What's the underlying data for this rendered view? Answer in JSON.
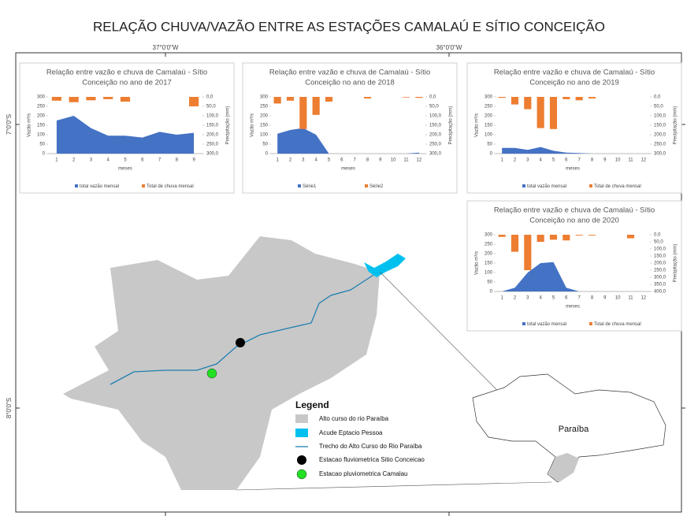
{
  "title": "RELAÇÃO CHUVA/VAZÃO ENTRE AS ESTAÇÕES CAMALAÚ E SÍTIO CONCEIÇÃO",
  "coordinates": {
    "top": [
      "37°0'0\"W",
      "36°0'0\"W"
    ],
    "left": [
      "7°0'0\"S",
      "8°0'0\"S"
    ]
  },
  "legend": {
    "title": "Legend",
    "items": [
      "Alto curso do rio Paraíba",
      "Acude Eptacio Pessoa",
      "Trecho do Alto Curso do Rio Paraíba",
      "Estacao fluviometrica Sitio Conceicao",
      "Estacao pluviometrica Camalau"
    ]
  },
  "map_label": "Paraíba",
  "chart_data": [
    {
      "type": "combo",
      "title": [
        "Relação entre vazão e chuva de Camalaú - Sítio",
        "Conceição no ano de 2017"
      ],
      "xlabel": "meses",
      "ylabel": "Vazão m³/s",
      "y2label": "Precipitação (mm)",
      "categories": [
        "1",
        "2",
        "3",
        "4",
        "5",
        "6",
        "7",
        "8",
        "9"
      ],
      "ylim": [
        0,
        300
      ],
      "yticks": [
        0,
        50,
        100,
        150,
        200,
        250,
        300
      ],
      "y2lim": [
        0,
        300
      ],
      "y2_inverted": true,
      "y2ticks": [
        {
          "value": 0,
          "label": "0,0"
        },
        {
          "value": 50,
          "label": "50,0"
        },
        {
          "value": 100,
          "label": "100,0"
        },
        {
          "value": 150,
          "label": "150,0"
        },
        {
          "value": 200,
          "label": "200,0"
        },
        {
          "value": 250,
          "label": "250,0"
        },
        {
          "value": 300,
          "label": "300,0"
        }
      ],
      "series": [
        {
          "name": "total vazão mensal",
          "kind": "area",
          "color": "#4472c4",
          "values": [
            175,
            200,
            135,
            95,
            95,
            85,
            115,
            100,
            110
          ]
        },
        {
          "name": "Total de chuva mensal",
          "kind": "bar",
          "axis": "y2",
          "color": "#ed7d31",
          "values": [
            20,
            28,
            18,
            12,
            25,
            0,
            0,
            0,
            50
          ]
        }
      ]
    },
    {
      "type": "combo",
      "title": [
        "Relação entre vazão e chuva de Camalaú - Sítio",
        "Conceição no ano de 2018"
      ],
      "xlabel": "meses",
      "ylabel": "Vazão m³/s",
      "y2label": "Precipitação (mm)",
      "categories": [
        "1",
        "2",
        "3",
        "4",
        "5",
        "6",
        "7",
        "8",
        "9",
        "10",
        "11",
        "12"
      ],
      "ylim": [
        0,
        300
      ],
      "yticks": [
        0,
        50,
        100,
        150,
        200,
        250,
        300
      ],
      "y2lim": [
        0,
        300
      ],
      "y2_inverted": true,
      "y2ticks": [
        {
          "value": 0,
          "label": "0,0"
        },
        {
          "value": 50,
          "label": "50,0"
        },
        {
          "value": 100,
          "label": "100,0"
        },
        {
          "value": 150,
          "label": "150,0"
        },
        {
          "value": 200,
          "label": "200,0"
        },
        {
          "value": 250,
          "label": "250,0"
        },
        {
          "value": 300,
          "label": "300,0"
        }
      ],
      "series": [
        {
          "name": "Série1",
          "kind": "area",
          "color": "#4472c4",
          "values": [
            105,
            125,
            135,
            100,
            0,
            0,
            0,
            0,
            0,
            0,
            0,
            5
          ]
        },
        {
          "name": "Série2",
          "kind": "bar",
          "axis": "y2",
          "color": "#ed7d31",
          "values": [
            35,
            20,
            170,
            95,
            25,
            0,
            0,
            8,
            0,
            0,
            3,
            5
          ]
        }
      ]
    },
    {
      "type": "combo",
      "title": [
        "Relação entre vazão e chuva de Camalaú - Sítio",
        "Conceição no ano de 2019"
      ],
      "xlabel": "meses",
      "ylabel": "Vazão m³/s",
      "y2label": "Precipitação (mm)",
      "categories": [
        "1",
        "2",
        "3",
        "4",
        "5",
        "6",
        "7",
        "8",
        "9",
        "10",
        "11",
        "12"
      ],
      "ylim": [
        0,
        300
      ],
      "yticks": [
        0,
        50,
        100,
        150,
        200,
        250,
        300
      ],
      "y2lim": [
        0,
        300
      ],
      "y2_inverted": true,
      "y2ticks": [
        {
          "value": 0,
          "label": "0,0"
        },
        {
          "value": 50,
          "label": "50,0"
        },
        {
          "value": 100,
          "label": "100,0"
        },
        {
          "value": 150,
          "label": "150,0"
        },
        {
          "value": 200,
          "label": "200,0"
        },
        {
          "value": 250,
          "label": "250,0"
        },
        {
          "value": 300,
          "label": "300,0"
        }
      ],
      "series": [
        {
          "name": "total vazão mensal",
          "kind": "area",
          "color": "#4472c4",
          "values": [
            30,
            30,
            20,
            35,
            15,
            5,
            3,
            0,
            0,
            0,
            0,
            0
          ]
        },
        {
          "name": "Total de chuva mensal",
          "kind": "bar",
          "axis": "y2",
          "color": "#ed7d31",
          "values": [
            5,
            40,
            65,
            165,
            170,
            12,
            18,
            8,
            0,
            0,
            0,
            0
          ]
        }
      ]
    },
    {
      "type": "combo",
      "title": [
        "Relação entre vazão e chuva de Camalaú - Sítio",
        "Conceição no ano de 2020"
      ],
      "xlabel": "meses",
      "ylabel": "Vazão m³/s",
      "y2label": "Precipitação (mm)",
      "categories": [
        "1",
        "2",
        "3",
        "4",
        "5",
        "6",
        "7",
        "8",
        "9",
        "10",
        "11",
        "12"
      ],
      "ylim": [
        0,
        300
      ],
      "yticks": [
        0,
        50,
        100,
        150,
        200,
        250,
        300
      ],
      "y2lim": [
        0,
        400
      ],
      "y2_inverted": true,
      "y2ticks": [
        {
          "value": 0,
          "label": "0,0"
        },
        {
          "value": 50,
          "label": "50,0"
        },
        {
          "value": 100,
          "label": "100,0"
        },
        {
          "value": 150,
          "label": "150,0"
        },
        {
          "value": 200,
          "label": "200,0"
        },
        {
          "value": 250,
          "label": "250,0"
        },
        {
          "value": 300,
          "label": "300,0"
        },
        {
          "value": 350,
          "label": "350,0"
        },
        {
          "value": 400,
          "label": "400,0"
        }
      ],
      "series": [
        {
          "name": "total vazão mensal",
          "kind": "area",
          "color": "#4472c4",
          "values": [
            0,
            20,
            100,
            150,
            155,
            20,
            0,
            0,
            0,
            0,
            0,
            0
          ]
        },
        {
          "name": "Total de chuva mensal",
          "kind": "bar",
          "axis": "y2",
          "color": "#ed7d31",
          "values": [
            15,
            120,
            250,
            50,
            35,
            40,
            5,
            5,
            0,
            0,
            25,
            0
          ]
        }
      ]
    }
  ]
}
